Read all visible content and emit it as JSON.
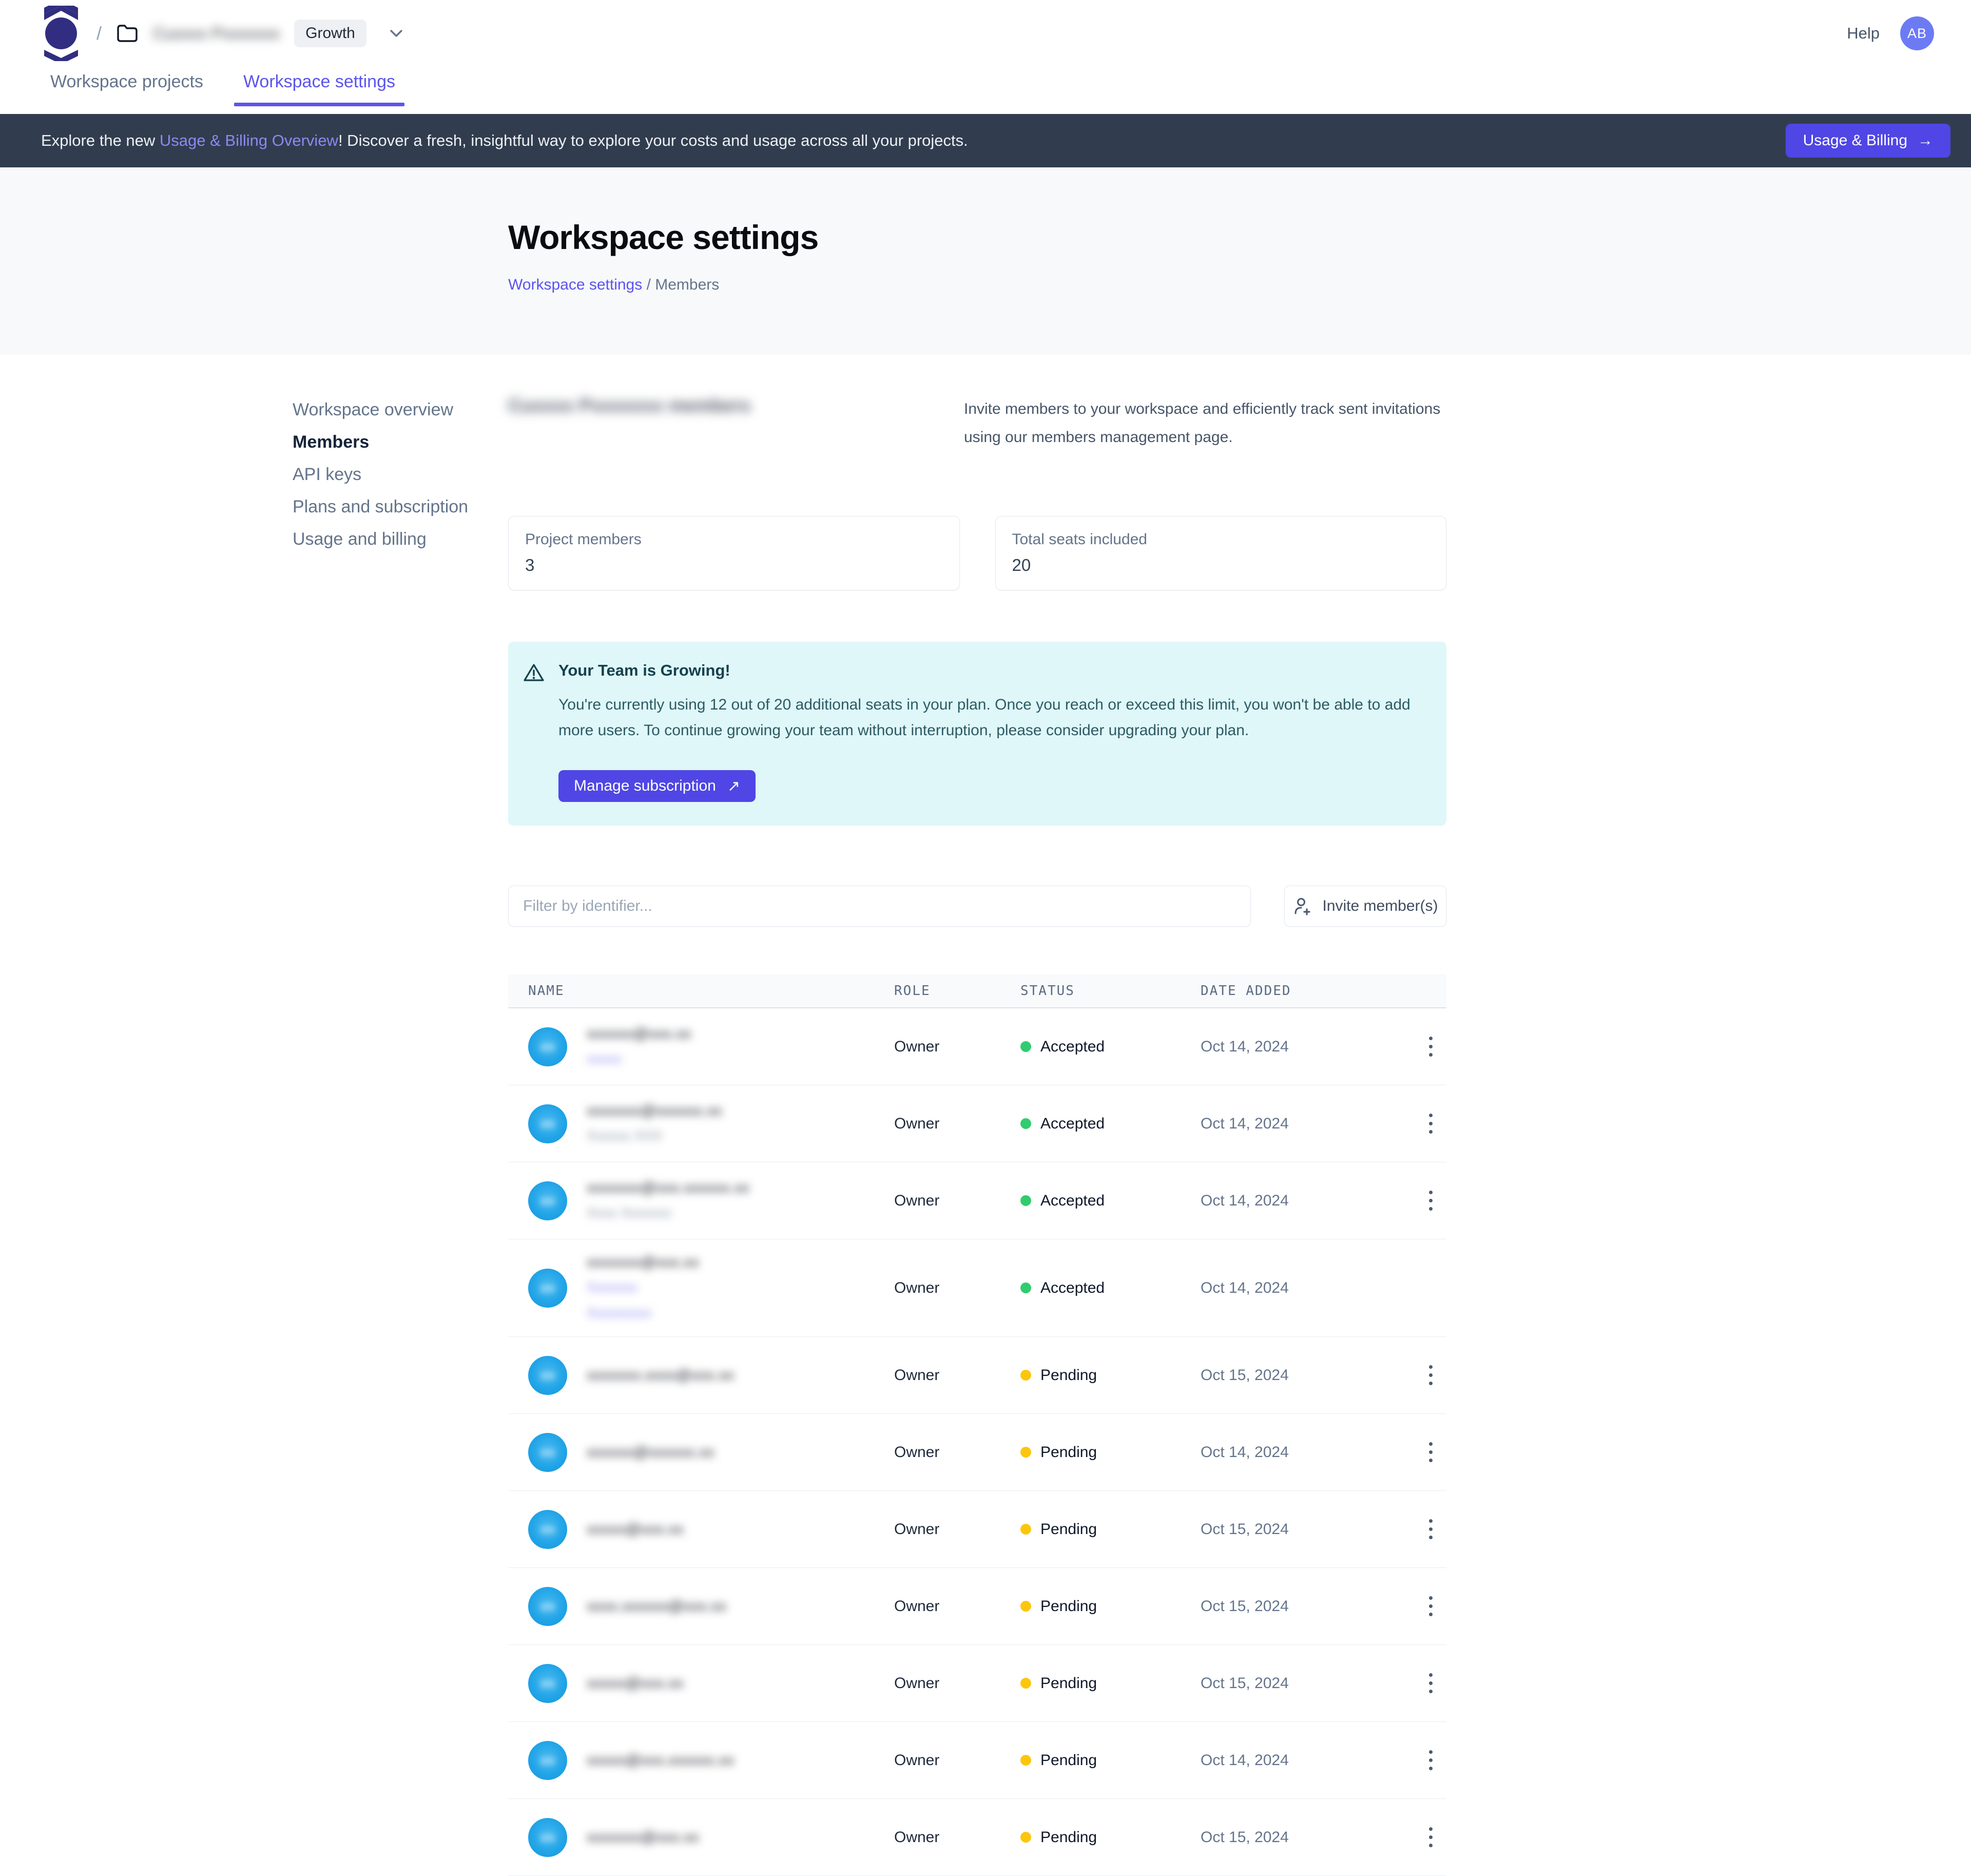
{
  "colors": {
    "accent": "#4f46e5",
    "tab_active": "#5b54ee",
    "banner_bg": "#313d4f",
    "banner_link": "#8d88f2",
    "hero_bg": "#f8f9fb",
    "alert_bg": "#dff7f8",
    "alert_text": "#2c5a64",
    "status_accepted": "#2fcd6f",
    "status_pending": "#fdc60d",
    "avatar_blue": "#22a5e8",
    "user_avatar": "#6c7bf4"
  },
  "header": {
    "breadcrumb_separator": "/",
    "workspace_name_redacted": "Cuxxxx Pxxxxxxx",
    "plan_badge": "Growth",
    "help_label": "Help",
    "avatar_initials": "AB"
  },
  "tabs": [
    {
      "label": "Workspace projects",
      "active": false
    },
    {
      "label": "Workspace settings",
      "active": true
    }
  ],
  "banner": {
    "text_prefix": "Explore the new ",
    "link_text": "Usage & Billing Overview",
    "text_suffix": "! Discover a fresh, insightful way to explore your costs and usage across all your projects.",
    "button_label": "Usage & Billing",
    "button_arrow": "→"
  },
  "hero": {
    "title": "Workspace settings",
    "breadcrumb_link": "Workspace settings",
    "breadcrumb_separator": " / ",
    "breadcrumb_current": "Members"
  },
  "sidebar": {
    "items": [
      {
        "label": "Workspace overview",
        "active": false
      },
      {
        "label": "Members",
        "active": true
      },
      {
        "label": "API keys",
        "active": false
      },
      {
        "label": "Plans and subscription",
        "active": false
      },
      {
        "label": "Usage and billing",
        "active": false
      }
    ]
  },
  "members_section": {
    "section_title_redacted": "Cuxxxx Pxxxxxxx members",
    "description": "Invite members to your workspace and efficiently track sent invitations using our members management page.",
    "cards": [
      {
        "label": "Project members",
        "value": "3"
      },
      {
        "label": "Total seats included",
        "value": "20"
      }
    ],
    "alert": {
      "title": "Your Team is Growing!",
      "body": "You're currently using 12 out of 20 additional seats in your plan. Once you reach or exceed this limit, you won't be able to add more users. To continue growing your team without interruption, please consider upgrading your plan.",
      "button_label": "Manage subscription",
      "button_arrow": "↗"
    },
    "filter_placeholder": "Filter by identifier...",
    "invite_button_label": "Invite member(s)"
  },
  "table": {
    "columns": [
      "NAME",
      "ROLE",
      "STATUS",
      "DATE ADDED"
    ],
    "rows": [
      {
        "email_redacted": "xxxxxx@xxx.xx",
        "sub_redacted": [
          "xxxxx"
        ],
        "sub_style": "indigo",
        "initials_redacted": "xx",
        "role": "Owner",
        "status": "Accepted",
        "date": "Oct 14, 2024",
        "has_menu": true,
        "tall": false
      },
      {
        "email_redacted": "xxxxxxx@xxxxxx.xx",
        "sub_redacted": [
          "Xxxxxx XXX"
        ],
        "sub_style": "slate",
        "initials_redacted": "xx",
        "role": "Owner",
        "status": "Accepted",
        "date": "Oct 14, 2024",
        "has_menu": true,
        "tall": false
      },
      {
        "email_redacted": "xxxxxxx@xxx.xxxxxx.xx",
        "sub_redacted": [
          "Xxxx Xxxxxxx"
        ],
        "sub_style": "slate",
        "initials_redacted": "xx",
        "role": "Owner",
        "status": "Accepted",
        "date": "Oct 14, 2024",
        "has_menu": true,
        "tall": false
      },
      {
        "email_redacted": "xxxxxxx@xxx.xx",
        "sub_redacted": [
          "Xxxxxxx",
          "Xxxxxxxxx"
        ],
        "sub_style": "indigo",
        "initials_redacted": "xx",
        "role": "Owner",
        "status": "Accepted",
        "date": "Oct 14, 2024",
        "has_menu": false,
        "tall": true
      },
      {
        "email_redacted": "xxxxxxx.xxxx@xxx.xx",
        "sub_redacted": [],
        "sub_style": "slate",
        "initials_redacted": "xx",
        "role": "Owner",
        "status": "Pending",
        "date": "Oct 15, 2024",
        "has_menu": true,
        "tall": false
      },
      {
        "email_redacted": "xxxxxx@xxxxxx.xx",
        "sub_redacted": [],
        "sub_style": "slate",
        "initials_redacted": "xx",
        "role": "Owner",
        "status": "Pending",
        "date": "Oct 14, 2024",
        "has_menu": true,
        "tall": false
      },
      {
        "email_redacted": "xxxxx@xxx.xx",
        "sub_redacted": [],
        "sub_style": "slate",
        "initials_redacted": "xx",
        "role": "Owner",
        "status": "Pending",
        "date": "Oct 15, 2024",
        "has_menu": true,
        "tall": false
      },
      {
        "email_redacted": "xxxx.xxxxxx@xxx.xx",
        "sub_redacted": [],
        "sub_style": "slate",
        "initials_redacted": "xx",
        "role": "Owner",
        "status": "Pending",
        "date": "Oct 15, 2024",
        "has_menu": true,
        "tall": false
      },
      {
        "email_redacted": "xxxxx@xxx.xx",
        "sub_redacted": [],
        "sub_style": "slate",
        "initials_redacted": "xx",
        "role": "Owner",
        "status": "Pending",
        "date": "Oct 15, 2024",
        "has_menu": true,
        "tall": false
      },
      {
        "email_redacted": "xxxxx@xxx.xxxxxx.xx",
        "sub_redacted": [],
        "sub_style": "slate",
        "initials_redacted": "xx",
        "role": "Owner",
        "status": "Pending",
        "date": "Oct 14, 2024",
        "has_menu": true,
        "tall": false
      },
      {
        "email_redacted": "xxxxxxx@xxx.xx",
        "sub_redacted": [],
        "sub_style": "slate",
        "initials_redacted": "xx",
        "role": "Owner",
        "status": "Pending",
        "date": "Oct 15, 2024",
        "has_menu": true,
        "tall": false
      }
    ]
  }
}
